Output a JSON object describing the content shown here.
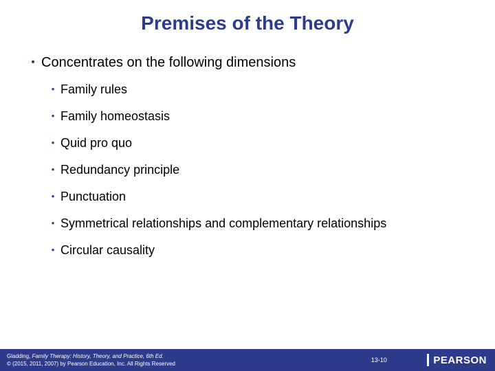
{
  "colors": {
    "accent": "#2e3b8b",
    "text": "#000000",
    "footer_bg": "#2e3b8b",
    "footer_text": "#ffffff",
    "background": "#ffffff"
  },
  "title": "Premises of the Theory",
  "intro": "Concentrates on the following dimensions",
  "bullets": [
    "Family rules",
    "Family homeostasis",
    "Quid pro quo",
    "Redundancy principle",
    "Punctuation",
    "Symmetrical relationships and complementary relationships",
    "Circular causality"
  ],
  "footer": {
    "author": "Gladding, ",
    "book_title": "Family Therapy: History, Theory, and Practice, 6th Ed.",
    "copyright": "© (2015, 2011, 2007) by Pearson Education, Inc. All Rights Reserved",
    "page_number": "13-10",
    "brand": "PEARSON"
  }
}
